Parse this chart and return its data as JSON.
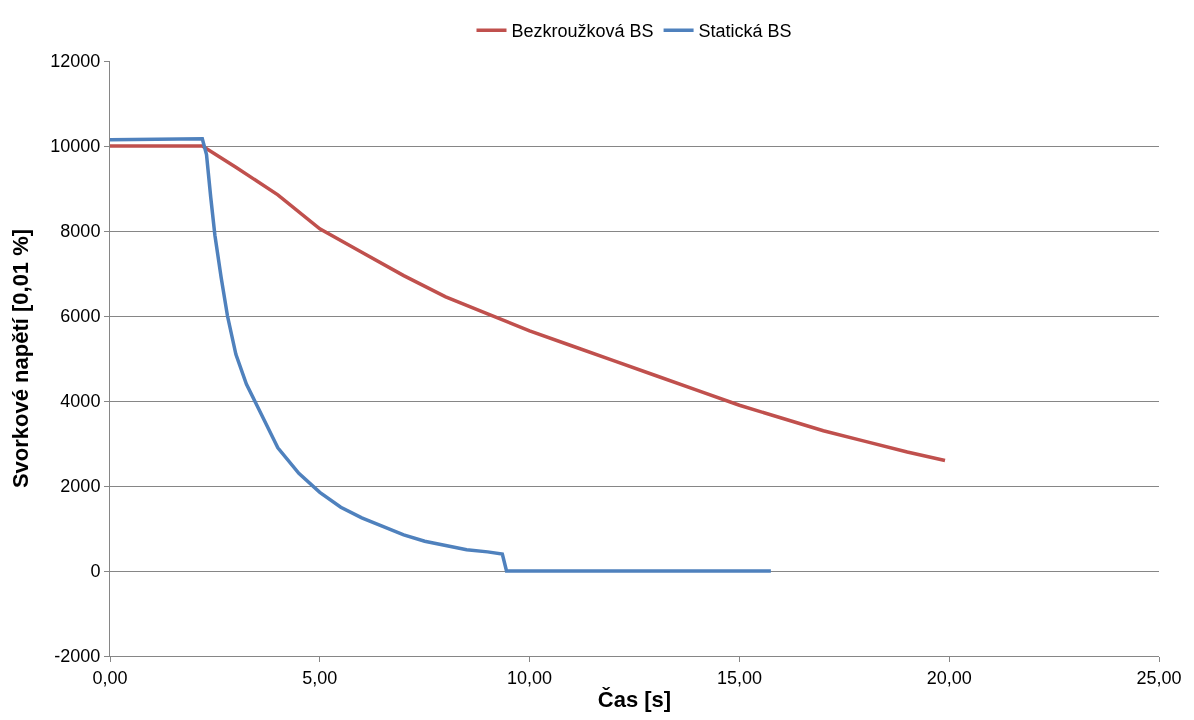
{
  "chart_data": {
    "type": "line",
    "xlabel": "Čas [s]",
    "ylabel": "Svorkové napětí [0,01 %]",
    "xlim": [
      0,
      25
    ],
    "xticks": [
      {
        "value": 0,
        "label": "0,00"
      },
      {
        "value": 5,
        "label": "5,00"
      },
      {
        "value": 10,
        "label": "10,00"
      },
      {
        "value": 15,
        "label": "15,00"
      },
      {
        "value": 20,
        "label": "20,00"
      },
      {
        "value": 25,
        "label": "25,00"
      }
    ],
    "ylim": [
      -2000,
      12000
    ],
    "yticks": [
      -2000,
      0,
      2000,
      4000,
      6000,
      8000,
      10000,
      12000
    ],
    "grid": "y",
    "legend": "top",
    "marker": "none",
    "line_style": "solid",
    "series": [
      {
        "name": "Bezkroužková BS",
        "color": "#c0504d",
        "x": [
          0,
          2.2,
          3,
          4,
          5,
          6,
          7,
          8,
          9,
          10,
          11,
          12,
          13,
          14,
          15,
          16,
          17,
          18,
          19,
          19.9
        ],
        "values": [
          10000,
          10000,
          9500,
          8850,
          8050,
          7500,
          6950,
          6450,
          6050,
          5650,
          5300,
          4950,
          4600,
          4250,
          3900,
          3600,
          3300,
          3050,
          2800,
          2600
        ]
      },
      {
        "name": "Statická BS",
        "color": "#4f81bd",
        "x": [
          0,
          2.2,
          2.3,
          2.4,
          2.5,
          2.65,
          2.8,
          3.0,
          3.25,
          3.5,
          4,
          4.5,
          5,
          5.5,
          6,
          6.5,
          7,
          7.5,
          8,
          8.5,
          9,
          9.35,
          9.45,
          15.75
        ],
        "values": [
          10150,
          10170,
          9800,
          8800,
          7900,
          6900,
          6000,
          5100,
          4400,
          3900,
          2900,
          2300,
          1850,
          1500,
          1250,
          1050,
          850,
          700,
          600,
          500,
          450,
          400,
          0,
          0
        ]
      }
    ]
  }
}
